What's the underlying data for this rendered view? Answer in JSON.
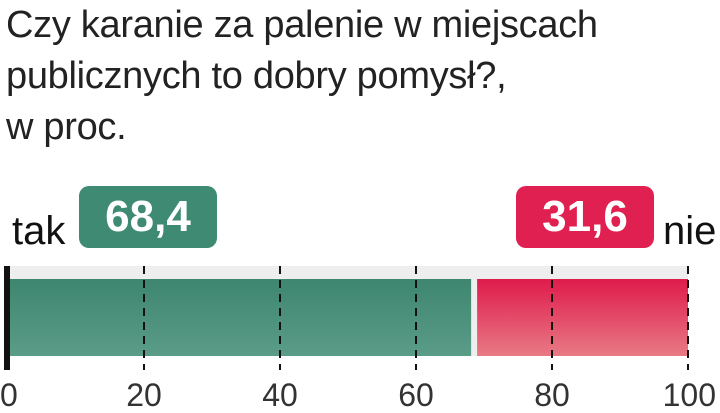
{
  "title_lines": [
    "Czy karanie za palenie w miejscach",
    "publicznych to dobry pomysł?,",
    "w proc."
  ],
  "colors": {
    "yes": "#3f8a72",
    "no": "#e02050",
    "track": "#eeeeee",
    "text": "#222222"
  },
  "chart_data": {
    "type": "bar",
    "orientation": "horizontal-stacked",
    "series": [
      {
        "label": "tak",
        "value": 68.4,
        "value_label": "68,4"
      },
      {
        "label": "nie",
        "value": 31.6,
        "value_label": "31,6"
      }
    ],
    "xlim": [
      0,
      100
    ],
    "ticks": [
      "0",
      "20",
      "40",
      "60",
      "80",
      "100"
    ],
    "tick_values": [
      0,
      20,
      40,
      60,
      80,
      100
    ],
    "grid": "dashed-vertical"
  }
}
